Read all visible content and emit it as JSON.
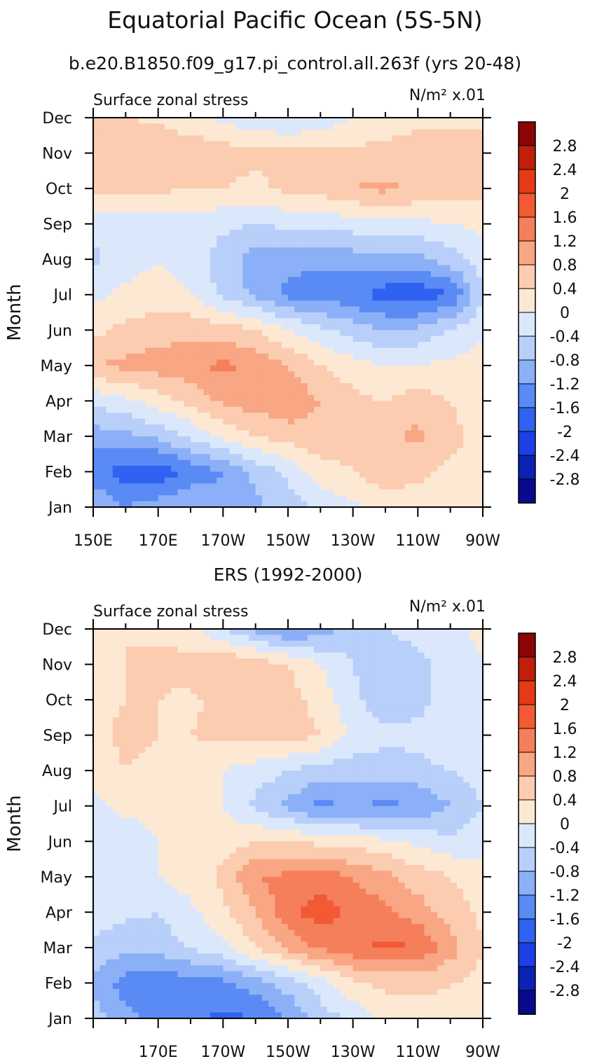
{
  "title": "Equatorial Pacific Ocean (5S-5N)",
  "colors": [
    "#0a0a8c",
    "#0b22b5",
    "#1e3fe6",
    "#2f62f0",
    "#5a8af4",
    "#8cb0f7",
    "#b8cffa",
    "#dbe8fc",
    "#fde8d4",
    "#fcccb0",
    "#f8a684",
    "#f57f5a",
    "#f25a34",
    "#e53a18",
    "#c01f0c",
    "#8c0505"
  ],
  "colorbar_levels": [
    "2.8",
    "2.4",
    "2",
    "1.6",
    "1.2",
    "0.8",
    "0.4",
    "0",
    "-0.4",
    "-0.8",
    "-1.2",
    "-1.6",
    "-2",
    "-2.4",
    "-2.8"
  ],
  "chart_data": [
    {
      "type": "heatmap",
      "title": "b.e20.B1850.f09_g17.pi_control.all.263f (yrs 20-48)",
      "left_label": "Surface zonal stress",
      "units_label": "N/m² x.01",
      "ylabel": "Month",
      "months": [
        "Jan",
        "Feb",
        "Mar",
        "Apr",
        "May",
        "Jun",
        "Jul",
        "Aug",
        "Sep",
        "Oct",
        "Nov",
        "Dec"
      ],
      "x_tick_labels": [
        "150E",
        "170E",
        "170W",
        "150W",
        "130W",
        "110W",
        "90W"
      ],
      "xlim_deg_east": [
        150,
        270
      ],
      "levels": [
        -2.8,
        -2.4,
        -2.0,
        -1.6,
        -1.2,
        -0.8,
        -0.4,
        0,
        0.4,
        0.8,
        1.2,
        1.6,
        2.0,
        2.4,
        2.8
      ],
      "lon_deg_east": [
        150,
        160,
        170,
        180,
        190,
        200,
        210,
        220,
        230,
        240,
        250,
        260,
        270
      ],
      "values": [
        [
          -0.8,
          -1.2,
          -1.0,
          -0.8,
          -1.0,
          -0.9,
          -0.6,
          -0.3,
          -0.1,
          0.1,
          0.2,
          0.2,
          0.2
        ],
        [
          -1.5,
          -1.8,
          -1.9,
          -1.5,
          -1.2,
          -0.7,
          -0.3,
          0.2,
          0.4,
          0.7,
          0.5,
          0.3,
          0.3
        ],
        [
          -1.0,
          -0.9,
          -0.7,
          -0.3,
          0.1,
          0.4,
          0.6,
          0.7,
          0.6,
          0.7,
          0.9,
          0.5,
          0.3
        ],
        [
          -0.3,
          -0.1,
          0.2,
          0.5,
          0.9,
          1.0,
          1.1,
          0.8,
          0.5,
          0.4,
          0.6,
          0.4,
          0.2
        ],
        [
          0.8,
          0.9,
          1.0,
          1.1,
          1.3,
          1.1,
          0.8,
          0.4,
          0.2,
          0.0,
          0.0,
          0.1,
          0.1
        ],
        [
          0.3,
          0.5,
          0.6,
          0.7,
          0.6,
          0.4,
          0.0,
          -0.3,
          -0.6,
          -0.8,
          -0.7,
          -0.4,
          0.0
        ],
        [
          -0.1,
          0.1,
          0.2,
          0.0,
          -0.5,
          -0.9,
          -1.3,
          -1.4,
          -1.5,
          -1.8,
          -1.9,
          -1.6,
          -0.5
        ],
        [
          -0.5,
          -0.2,
          0.0,
          -0.2,
          -0.6,
          -1.0,
          -1.1,
          -1.1,
          -1.0,
          -1.0,
          -0.9,
          -0.6,
          -0.2
        ],
        [
          -0.2,
          -0.2,
          -0.2,
          -0.2,
          -0.3,
          -0.4,
          -0.3,
          -0.3,
          -0.2,
          -0.1,
          -0.1,
          0.0,
          0.1
        ],
        [
          0.6,
          0.5,
          0.5,
          0.4,
          0.4,
          0.3,
          0.5,
          0.6,
          0.8,
          0.9,
          0.7,
          0.6,
          0.6
        ],
        [
          0.8,
          0.8,
          0.8,
          0.7,
          0.6,
          0.5,
          0.5,
          0.5,
          0.5,
          0.5,
          0.6,
          0.6,
          0.6
        ],
        [
          0.5,
          0.4,
          0.3,
          0.1,
          -0.1,
          -0.3,
          -0.4,
          -0.3,
          0.0,
          0.2,
          0.3,
          0.3,
          0.3
        ]
      ]
    },
    {
      "type": "heatmap",
      "title": "ERS (1992-2000)",
      "left_label": "Surface zonal stress",
      "units_label": "N/m² x.01",
      "ylabel": "Month",
      "months": [
        "Jan",
        "Feb",
        "Mar",
        "Apr",
        "May",
        "Jun",
        "Jul",
        "Aug",
        "Sep",
        "Oct",
        "Nov",
        "Dec"
      ],
      "x_tick_labels": [
        "170E",
        "170W",
        "150W",
        "130W",
        "110W",
        "90W"
      ],
      "xlim_deg_east": [
        150,
        270
      ],
      "levels": [
        -2.8,
        -2.4,
        -2.0,
        -1.6,
        -1.2,
        -0.8,
        -0.4,
        0,
        0.4,
        0.8,
        1.2,
        1.6,
        2.0,
        2.4,
        2.8
      ],
      "lon_deg_east": [
        150,
        160,
        170,
        180,
        190,
        200,
        210,
        220,
        230,
        240,
        250,
        260,
        270
      ],
      "values": [
        [
          -0.6,
          -1.1,
          -1.3,
          -1.5,
          -1.7,
          -1.6,
          -1.2,
          -0.6,
          -0.3,
          0.1,
          0.2,
          0.3,
          0.3
        ],
        [
          -0.9,
          -1.4,
          -1.5,
          -1.4,
          -1.3,
          -1.0,
          -0.6,
          -0.2,
          0.3,
          0.5,
          0.5,
          0.4,
          0.3
        ],
        [
          -0.5,
          -0.7,
          -0.6,
          -0.4,
          -0.1,
          0.4,
          0.9,
          1.3,
          1.5,
          1.7,
          1.6,
          1.0,
          0.4
        ],
        [
          -0.2,
          -0.3,
          -0.4,
          -0.1,
          0.3,
          0.8,
          1.5,
          1.8,
          1.5,
          1.3,
          1.0,
          0.6,
          0.3
        ],
        [
          -0.2,
          -0.1,
          0.0,
          0.2,
          0.5,
          1.2,
          1.3,
          1.4,
          1.2,
          0.9,
          0.6,
          0.4,
          0.2
        ],
        [
          -0.3,
          -0.2,
          0.0,
          0.1,
          0.2,
          0.4,
          0.4,
          0.3,
          0.2,
          0.1,
          -0.1,
          -0.3,
          -0.2
        ],
        [
          -0.1,
          0.1,
          0.1,
          0.2,
          0.0,
          -0.5,
          -0.9,
          -1.3,
          -1.2,
          -1.3,
          -1.2,
          -0.8,
          -0.4
        ],
        [
          0.2,
          0.4,
          0.3,
          0.2,
          0.0,
          -0.2,
          -0.4,
          -0.6,
          -0.6,
          -0.6,
          -0.5,
          -0.4,
          -0.2
        ],
        [
          0.3,
          0.5,
          0.4,
          0.4,
          0.5,
          0.6,
          0.6,
          0.4,
          -0.1,
          -0.3,
          -0.3,
          -0.2,
          -0.1
        ],
        [
          0.3,
          0.4,
          0.4,
          0.3,
          0.6,
          0.7,
          0.6,
          0.2,
          -0.3,
          -0.7,
          -0.5,
          -0.3,
          0.0
        ],
        [
          0.4,
          0.4,
          0.5,
          0.6,
          0.8,
          0.6,
          0.4,
          0.0,
          -0.4,
          -0.6,
          -0.5,
          -0.3,
          0.0
        ],
        [
          0.3,
          0.4,
          0.3,
          0.1,
          -0.4,
          -0.9,
          -1.3,
          -1.0,
          -0.6,
          -0.4,
          -0.3,
          -0.1,
          0.1
        ]
      ]
    }
  ]
}
